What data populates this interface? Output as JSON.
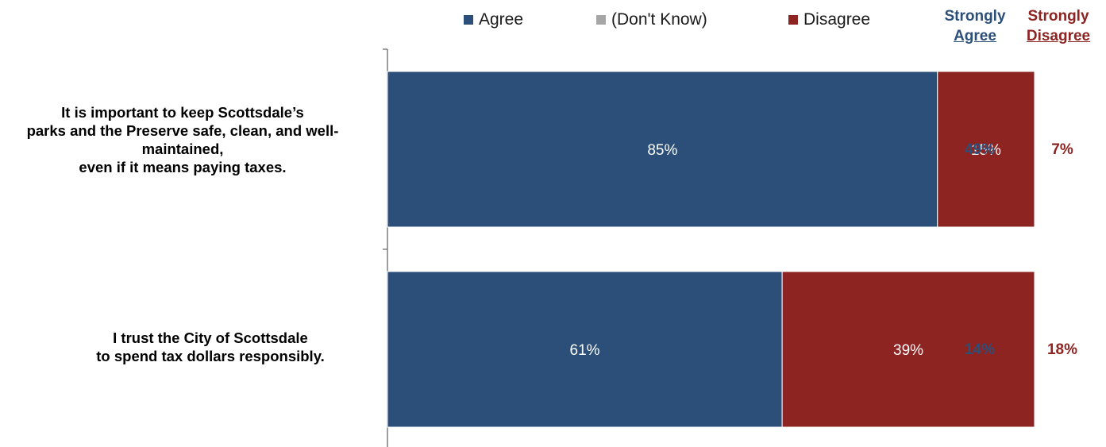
{
  "legend": [
    {
      "label": "Agree",
      "color": "#2b4f79"
    },
    {
      "label": "(Don't Know)",
      "color": "#a6a6a6"
    },
    {
      "label": "Disagree",
      "color": "#8e2422"
    }
  ],
  "side_headers": {
    "strongly_agree": {
      "line1": "Strongly",
      "line2": "Agree",
      "color": "#2b4f79"
    },
    "strongly_disagree": {
      "line1": "Strongly",
      "line2": "Disagree",
      "color": "#8e2422"
    }
  },
  "chart_data": {
    "type": "bar",
    "orientation": "horizontal",
    "stacked": true,
    "categories": [
      "It is important to keep Scottsdale’s parks and the Preserve safe, clean, and well-maintained, even if it means paying taxes.",
      "I trust the City of Scottsdale to spend tax dollars responsibly."
    ],
    "category_lines": [
      [
        "It is important to keep Scottsdale’s",
        "parks and the Preserve safe, clean, and well-",
        "maintained,",
        "even if it means paying taxes."
      ],
      [
        "I trust the City of Scottsdale",
        "to spend tax dollars responsibly."
      ]
    ],
    "series": [
      {
        "name": "Agree",
        "values": [
          85,
          61
        ],
        "labels": [
          "85%",
          "61%"
        ]
      },
      {
        "name": "(Don't Know)",
        "values": [
          0,
          0
        ],
        "labels": [
          "",
          ""
        ]
      },
      {
        "name": "Disagree",
        "values": [
          15,
          39
        ],
        "labels": [
          "15%",
          "39%"
        ]
      }
    ],
    "strongly_agree": [
      "49%",
      "14%"
    ],
    "strongly_disagree": [
      "7%",
      "18%"
    ],
    "xlim": [
      0,
      100
    ],
    "grid": false,
    "legend_position": "top"
  }
}
